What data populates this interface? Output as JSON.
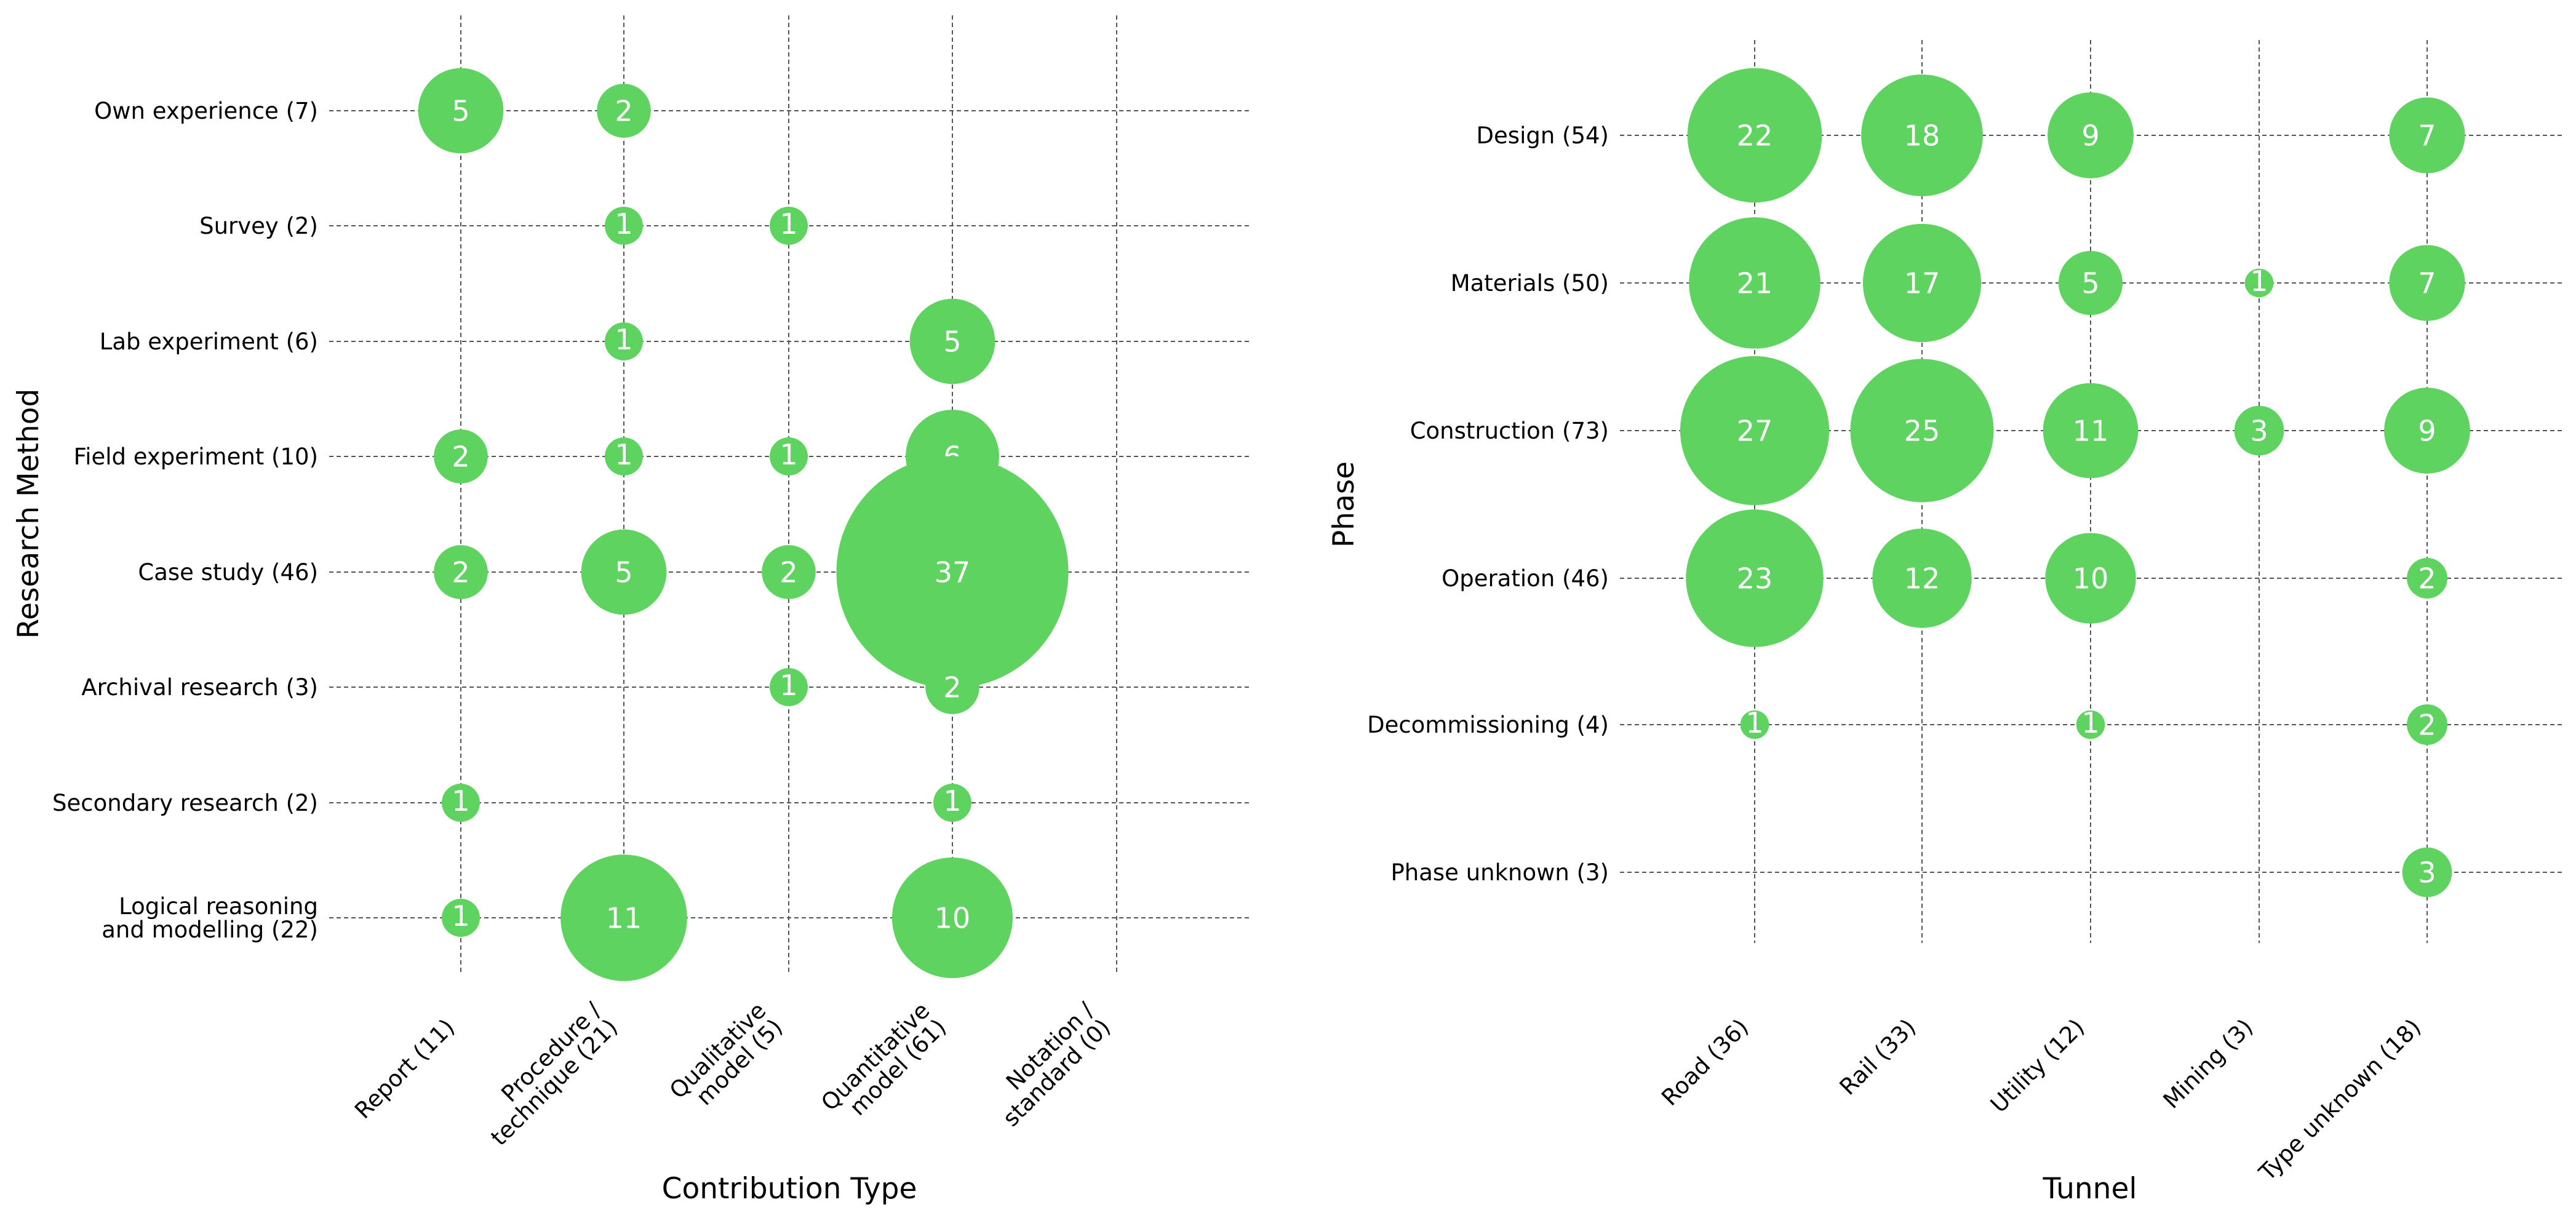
{
  "chart_data": [
    {
      "type": "bubble",
      "title": "",
      "xlabel": "Contribution Type",
      "ylabel": "Research Method",
      "grid": true,
      "color": "#5fd35f",
      "label_color": "#ffffff",
      "x_categories": [
        "Report (11)",
        "Procedure / technique (21)",
        "Qualitative model (5)",
        "Quantitative model (61)",
        "Notation / standard (0)"
      ],
      "x_tick_lines": [
        [
          "Report (11)"
        ],
        [
          "Procedure /",
          "technique (21)"
        ],
        [
          "Qualitative",
          "model (5)"
        ],
        [
          "Quantitative",
          "model (61)"
        ],
        [
          "Notation /",
          "standard (0)"
        ]
      ],
      "y_categories": [
        "Own experience (7)",
        "Survey (2)",
        "Lab experiment (6)",
        "Field experiment (10)",
        "Case study (46)",
        "Archival research (3)",
        "Secondary research (2)",
        "Logical reasoning and modelling (22)"
      ],
      "y_tick_lines": [
        [
          "Own experience (7)"
        ],
        [
          "Survey (2)"
        ],
        [
          "Lab experiment (6)"
        ],
        [
          "Field experiment (10)"
        ],
        [
          "Case study (46)"
        ],
        [
          "Archival research (3)"
        ],
        [
          "Secondary research (2)"
        ],
        [
          "Logical reasoning",
          "and modelling (22)"
        ]
      ],
      "points": [
        {
          "x": "Report (11)",
          "y": "Own experience (7)",
          "value": 5
        },
        {
          "x": "Procedure / technique (21)",
          "y": "Own experience (7)",
          "value": 2
        },
        {
          "x": "Procedure / technique (21)",
          "y": "Survey (2)",
          "value": 1
        },
        {
          "x": "Qualitative model (5)",
          "y": "Survey (2)",
          "value": 1
        },
        {
          "x": "Procedure / technique (21)",
          "y": "Lab experiment (6)",
          "value": 1
        },
        {
          "x": "Quantitative model (61)",
          "y": "Lab experiment (6)",
          "value": 5
        },
        {
          "x": "Report (11)",
          "y": "Field experiment (10)",
          "value": 2
        },
        {
          "x": "Procedure / technique (21)",
          "y": "Field experiment (10)",
          "value": 1
        },
        {
          "x": "Qualitative model (5)",
          "y": "Field experiment (10)",
          "value": 1
        },
        {
          "x": "Quantitative model (61)",
          "y": "Field experiment (10)",
          "value": 6
        },
        {
          "x": "Report (11)",
          "y": "Case study (46)",
          "value": 2
        },
        {
          "x": "Procedure / technique (21)",
          "y": "Case study (46)",
          "value": 5
        },
        {
          "x": "Qualitative model (5)",
          "y": "Case study (46)",
          "value": 2
        },
        {
          "x": "Quantitative model (61)",
          "y": "Case study (46)",
          "value": 37
        },
        {
          "x": "Qualitative model (5)",
          "y": "Archival research (3)",
          "value": 1
        },
        {
          "x": "Quantitative model (61)",
          "y": "Archival research (3)",
          "value": 2
        },
        {
          "x": "Report (11)",
          "y": "Secondary research (2)",
          "value": 1
        },
        {
          "x": "Quantitative model (61)",
          "y": "Secondary research (2)",
          "value": 1
        },
        {
          "x": "Report (11)",
          "y": "Logical reasoning and modelling (22)",
          "value": 1
        },
        {
          "x": "Procedure / technique (21)",
          "y": "Logical reasoning and modelling (22)",
          "value": 11
        },
        {
          "x": "Quantitative model (61)",
          "y": "Logical reasoning and modelling (22)",
          "value": 10
        }
      ]
    },
    {
      "type": "bubble",
      "title": "",
      "xlabel": "Tunnel",
      "ylabel": "Phase",
      "grid": true,
      "color": "#5fd35f",
      "label_color": "#ffffff",
      "x_categories": [
        "Road (36)",
        "Rail (33)",
        "Utility (12)",
        "Mining (3)",
        "Type unknown (18)"
      ],
      "x_tick_lines": [
        [
          "Road (36)"
        ],
        [
          "Rail (33)"
        ],
        [
          "Utility (12)"
        ],
        [
          "Mining (3)"
        ],
        [
          "Type unknown (18)"
        ]
      ],
      "y_categories": [
        "Design (54)",
        "Materials (50)",
        "Construction (73)",
        "Operation (46)",
        "Decommissioning (4)",
        "Phase unknown (3)"
      ],
      "y_tick_lines": [
        [
          "Design (54)"
        ],
        [
          "Materials (50)"
        ],
        [
          "Construction (73)"
        ],
        [
          "Operation (46)"
        ],
        [
          "Decommissioning (4)"
        ],
        [
          "Phase unknown (3)"
        ]
      ],
      "points": [
        {
          "x": "Road (36)",
          "y": "Design (54)",
          "value": 22
        },
        {
          "x": "Rail (33)",
          "y": "Design (54)",
          "value": 18
        },
        {
          "x": "Utility (12)",
          "y": "Design (54)",
          "value": 9
        },
        {
          "x": "Type unknown (18)",
          "y": "Design (54)",
          "value": 7
        },
        {
          "x": "Road (36)",
          "y": "Materials (50)",
          "value": 21
        },
        {
          "x": "Rail (33)",
          "y": "Materials (50)",
          "value": 17
        },
        {
          "x": "Utility (12)",
          "y": "Materials (50)",
          "value": 5
        },
        {
          "x": "Mining (3)",
          "y": "Materials (50)",
          "value": 1
        },
        {
          "x": "Type unknown (18)",
          "y": "Materials (50)",
          "value": 7
        },
        {
          "x": "Road (36)",
          "y": "Construction (73)",
          "value": 27
        },
        {
          "x": "Rail (33)",
          "y": "Construction (73)",
          "value": 25
        },
        {
          "x": "Utility (12)",
          "y": "Construction (73)",
          "value": 11
        },
        {
          "x": "Mining (3)",
          "y": "Construction (73)",
          "value": 3
        },
        {
          "x": "Type unknown (18)",
          "y": "Construction (73)",
          "value": 9
        },
        {
          "x": "Road (36)",
          "y": "Operation (46)",
          "value": 23
        },
        {
          "x": "Rail (33)",
          "y": "Operation (46)",
          "value": 12
        },
        {
          "x": "Utility (12)",
          "y": "Operation (46)",
          "value": 10
        },
        {
          "x": "Type unknown (18)",
          "y": "Operation (46)",
          "value": 2
        },
        {
          "x": "Road (36)",
          "y": "Decommissioning (4)",
          "value": 1
        },
        {
          "x": "Utility (12)",
          "y": "Decommissioning (4)",
          "value": 1
        },
        {
          "x": "Type unknown (18)",
          "y": "Decommissioning (4)",
          "value": 2
        },
        {
          "x": "Type unknown (18)",
          "y": "Phase unknown (3)",
          "value": 3
        }
      ]
    }
  ]
}
